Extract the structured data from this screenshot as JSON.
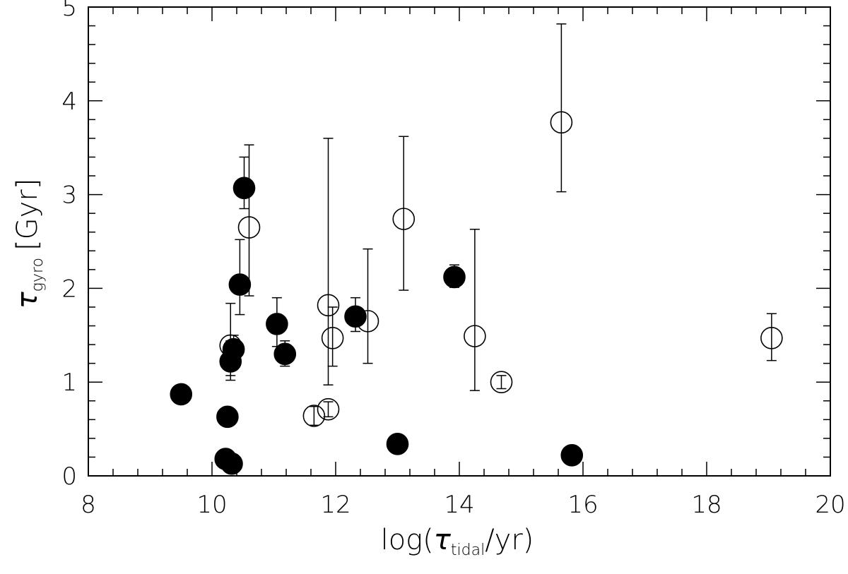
{
  "chart_data": {
    "type": "scatter",
    "title": "",
    "xlabel": {
      "prefix": "log(",
      "symbol": "τ",
      "subscript": "tidal",
      "suffix": "/yr)"
    },
    "ylabel": {
      "symbol": "τ",
      "subscript": "gyro",
      "unit": "[Gyr]"
    },
    "xlim": [
      8,
      20
    ],
    "ylim": [
      0,
      5
    ],
    "xticks": [
      "8",
      "10",
      "12",
      "14",
      "16",
      "18",
      "20"
    ],
    "yticks": [
      "0",
      "1",
      "2",
      "3",
      "4",
      "5"
    ],
    "grid": false,
    "legend": "none",
    "series": [
      {
        "marker": "filled-circle",
        "points": [
          {
            "x": 9.5,
            "y": 0.87,
            "ylo": 0.81,
            "yhi": 0.94
          },
          {
            "x": 10.25,
            "y": 0.63,
            "ylo": 0.56,
            "yhi": 0.7
          },
          {
            "x": 10.22,
            "y": 0.18,
            "ylo": 0.18,
            "yhi": 0.18
          },
          {
            "x": 10.32,
            "y": 0.13,
            "ylo": 0.13,
            "yhi": 0.13
          },
          {
            "x": 10.3,
            "y": 1.22,
            "ylo": 1.02,
            "yhi": 1.44
          },
          {
            "x": 10.35,
            "y": 1.35,
            "ylo": 1.2,
            "yhi": 1.5
          },
          {
            "x": 10.45,
            "y": 2.04,
            "ylo": 1.72,
            "yhi": 2.52
          },
          {
            "x": 10.52,
            "y": 3.07,
            "ylo": 2.85,
            "yhi": 3.4
          },
          {
            "x": 11.05,
            "y": 1.62,
            "ylo": 1.38,
            "yhi": 1.9
          },
          {
            "x": 11.18,
            "y": 1.3,
            "ylo": 1.17,
            "yhi": 1.44
          },
          {
            "x": 12.32,
            "y": 1.7,
            "ylo": 1.54,
            "yhi": 1.9
          },
          {
            "x": 13.0,
            "y": 0.34,
            "ylo": 0.34,
            "yhi": 0.34
          },
          {
            "x": 13.92,
            "y": 2.12,
            "ylo": 2.01,
            "yhi": 2.25
          },
          {
            "x": 15.82,
            "y": 0.22,
            "ylo": 0.22,
            "yhi": 0.22
          }
        ]
      },
      {
        "marker": "open-circle",
        "points": [
          {
            "x": 10.3,
            "y": 1.39,
            "ylo": 1.07,
            "yhi": 1.84
          },
          {
            "x": 10.6,
            "y": 2.65,
            "ylo": 1.92,
            "yhi": 3.53
          },
          {
            "x": 11.65,
            "y": 0.64,
            "ylo": 0.54,
            "yhi": 0.74
          },
          {
            "x": 11.88,
            "y": 0.71,
            "ylo": 0.63,
            "yhi": 0.79
          },
          {
            "x": 11.88,
            "y": 1.82,
            "ylo": 0.97,
            "yhi": 3.6
          },
          {
            "x": 11.95,
            "y": 1.47,
            "ylo": 1.17,
            "yhi": 1.8
          },
          {
            "x": 12.52,
            "y": 1.65,
            "ylo": 1.2,
            "yhi": 2.42
          },
          {
            "x": 13.1,
            "y": 2.74,
            "ylo": 1.98,
            "yhi": 3.62
          },
          {
            "x": 14.25,
            "y": 1.49,
            "ylo": 0.91,
            "yhi": 2.63
          },
          {
            "x": 14.68,
            "y": 1.0,
            "ylo": 0.93,
            "yhi": 1.07
          },
          {
            "x": 15.65,
            "y": 3.77,
            "ylo": 3.03,
            "yhi": 4.82
          },
          {
            "x": 19.05,
            "y": 1.47,
            "ylo": 1.23,
            "yhi": 1.73
          }
        ]
      }
    ]
  }
}
